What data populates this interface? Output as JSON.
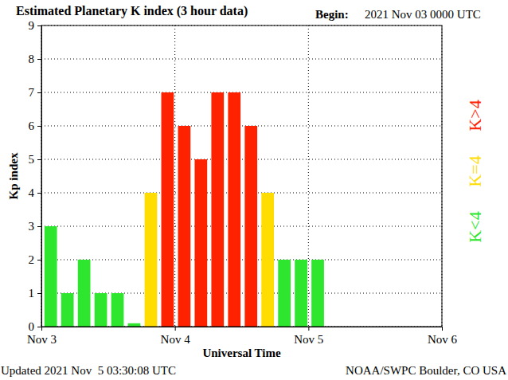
{
  "chart_data": {
    "type": "bar",
    "title": "Estimated Planetary K index (3 hour data)",
    "begin_label": "Begin:",
    "begin_value": "2021 Nov 03 0000 UTC",
    "x_label": "Universal Time",
    "y_label": "Kp index",
    "footer_left": "Updated 2021 Nov  5 03:30:08 UTC",
    "footer_right": "NOAA/SWPC Boulder, CO USA",
    "x": [
      0,
      3,
      6,
      9,
      12,
      15,
      18,
      21,
      24,
      27,
      30,
      33,
      36,
      39,
      42,
      45,
      48
    ],
    "values": [
      3,
      1,
      2,
      1,
      1,
      0.1,
      4,
      7,
      6,
      5,
      7,
      7,
      6,
      4,
      2,
      2,
      2
    ],
    "colors": [
      "#2ee62e",
      "#2ee62e",
      "#2ee62e",
      "#2ee62e",
      "#2ee62e",
      "#2ee62e",
      "#ffdd00",
      "#ff2200",
      "#ff2200",
      "#ff2200",
      "#ff2200",
      "#ff2200",
      "#ff2200",
      "#ffdd00",
      "#2ee62e",
      "#2ee62e",
      "#2ee62e"
    ],
    "xlim": [
      0,
      72
    ],
    "xticks": [
      {
        "value": 0,
        "label": "Nov 3"
      },
      {
        "value": 24,
        "label": "Nov 4"
      },
      {
        "value": 48,
        "label": "Nov 5"
      },
      {
        "value": 72,
        "label": "Nov 6"
      }
    ],
    "ylim": [
      0,
      9
    ],
    "yticks": [
      0,
      1,
      2,
      3,
      4,
      5,
      6,
      7,
      8,
      9
    ],
    "grid": true,
    "annotations": [
      {
        "text": "K<4",
        "color": "#2ee62e"
      },
      {
        "text": "K=4",
        "color": "#ffdd00"
      },
      {
        "text": "K>4",
        "color": "#ff2200"
      }
    ]
  }
}
